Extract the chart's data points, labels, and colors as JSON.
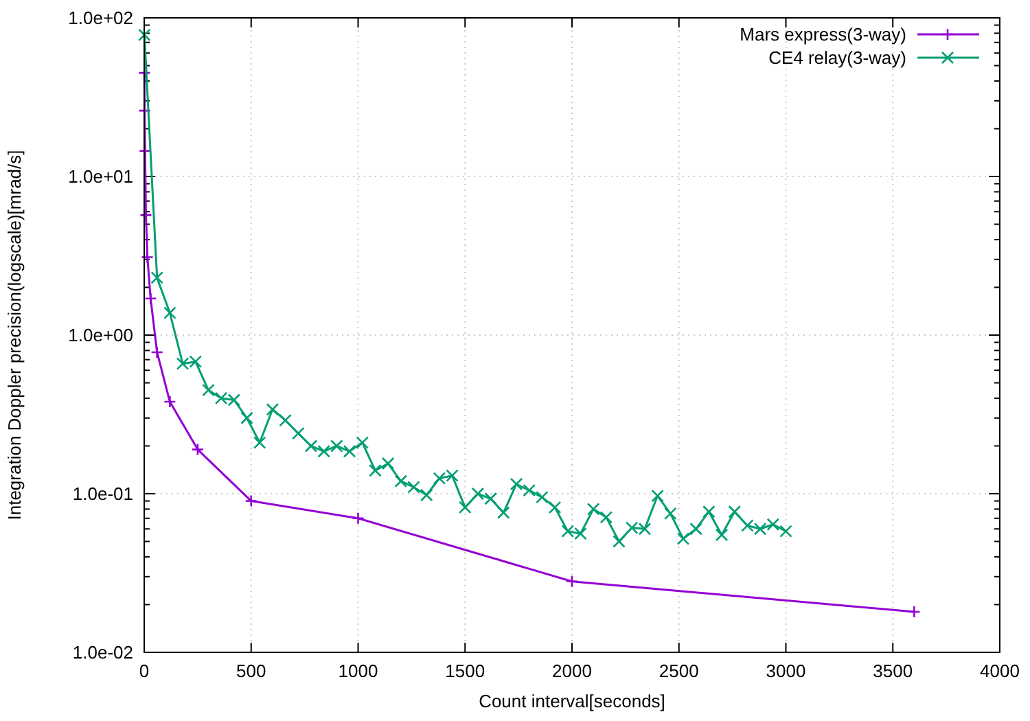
{
  "chart_data": {
    "type": "line",
    "xlabel": "Count interval[seconds]",
    "ylabel": "Integration Doppler precision(logscale)[mrad/s]",
    "log": "y",
    "grid": true,
    "legend": "top right",
    "xlim": [
      0,
      4000
    ],
    "xticks": [
      0,
      500,
      1000,
      1500,
      2000,
      2500,
      3000,
      3500,
      4000
    ],
    "ylim": [
      0.01,
      100
    ],
    "yticks": [
      {
        "value": 0.01,
        "label": "1.0e-02"
      },
      {
        "value": 0.1,
        "label": "1.0e-01"
      },
      {
        "value": 1,
        "label": "1.0e+00"
      },
      {
        "value": 10,
        "label": "1.0e+01"
      },
      {
        "value": 100,
        "label": "1.0e+02"
      }
    ],
    "series": [
      {
        "name": "Mars express(3-way)",
        "color": "#9400d3",
        "marker": "cross",
        "x": [
          1,
          2,
          4,
          8,
          15,
          30,
          60,
          120,
          250,
          500,
          1000,
          2000,
          3600
        ],
        "values": [
          45,
          26,
          14.5,
          5.7,
          3.1,
          1.7,
          0.78,
          0.38,
          0.19,
          0.09,
          0.07,
          0.028,
          0.018
        ]
      },
      {
        "name": "CE4 relay(3-way)",
        "color": "#009e73",
        "marker": "x",
        "x": [
          1,
          60,
          120,
          180,
          240,
          300,
          360,
          420,
          480,
          540,
          600,
          660,
          720,
          780,
          840,
          900,
          960,
          1020,
          1080,
          1140,
          1200,
          1260,
          1320,
          1380,
          1440,
          1500,
          1560,
          1620,
          1680,
          1740,
          1800,
          1860,
          1920,
          1980,
          2040,
          2100,
          2160,
          2220,
          2280,
          2340,
          2400,
          2460,
          2520,
          2580,
          2640,
          2700,
          2760,
          2820,
          2880,
          2940,
          3000
        ],
        "values": [
          78,
          2.3,
          1.38,
          0.66,
          0.68,
          0.45,
          0.4,
          0.39,
          0.3,
          0.21,
          0.34,
          0.29,
          0.24,
          0.2,
          0.185,
          0.2,
          0.185,
          0.21,
          0.14,
          0.155,
          0.12,
          0.11,
          0.098,
          0.125,
          0.13,
          0.082,
          0.1,
          0.093,
          0.076,
          0.115,
          0.105,
          0.095,
          0.082,
          0.058,
          0.056,
          0.08,
          0.071,
          0.05,
          0.061,
          0.06,
          0.097,
          0.075,
          0.052,
          0.06,
          0.077,
          0.055,
          0.077,
          0.063,
          0.06,
          0.064,
          0.058
        ]
      }
    ]
  }
}
